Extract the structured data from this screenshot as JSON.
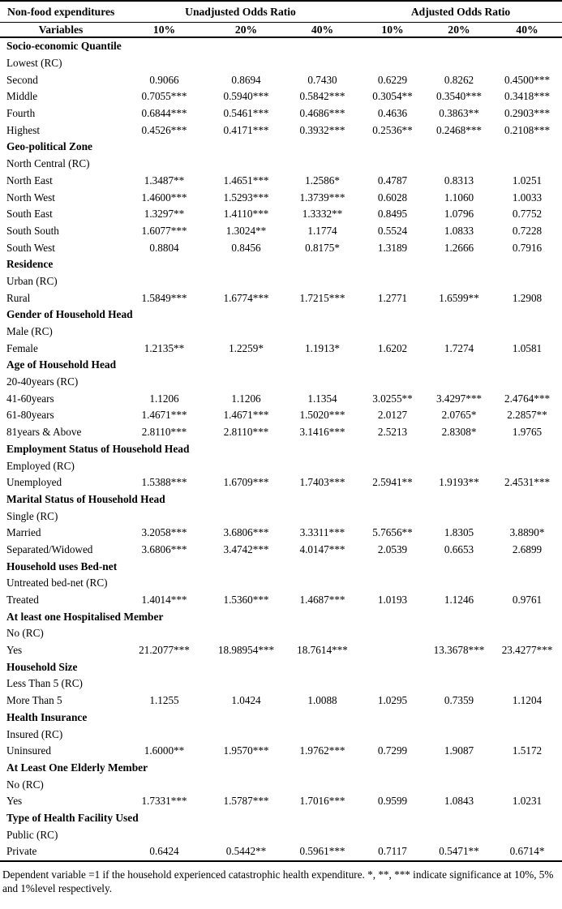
{
  "table": {
    "header": {
      "col1": "Non-food expenditures",
      "group_unadjusted": "Unadjusted Odds Ratio",
      "group_adjusted": "Adjusted Odds Ratio",
      "variables_label": "Variables",
      "thresholds": [
        "10%",
        "20%",
        "40%",
        "10%",
        "20%",
        "40%"
      ]
    },
    "sections": [
      {
        "title": "Socio-economic Quantile",
        "reference": "Lowest (RC)",
        "rows": [
          {
            "label": "Second",
            "values": [
              "0.9066",
              "0.8694",
              "0.7430",
              "0.6229",
              "0.8262",
              "0.4500***"
            ]
          },
          {
            "label": "Middle",
            "values": [
              "0.7055***",
              "0.5940***",
              "0.5842***",
              "0.3054**",
              "0.3540***",
              "0.3418***"
            ]
          },
          {
            "label": "Fourth",
            "values": [
              "0.6844***",
              "0.5461***",
              "0.4686***",
              "0.4636",
              "0.3863**",
              "0.2903***"
            ]
          },
          {
            "label": "Highest",
            "values": [
              "0.4526***",
              "0.4171***",
              "0.3932***",
              "0.2536**",
              "0.2468***",
              "0.2108***"
            ]
          }
        ]
      },
      {
        "title": "Geo-political Zone",
        "reference": "North Central (RC)",
        "rows": [
          {
            "label": "North East",
            "values": [
              "1.3487**",
              "1.4651***",
              "1.2586*",
              "0.4787",
              "0.8313",
              "1.0251"
            ]
          },
          {
            "label": "North West",
            "values": [
              "1.4600***",
              "1.5293***",
              "1.3739***",
              "0.6028",
              "1.1060",
              "1.0033"
            ]
          },
          {
            "label": "South East",
            "values": [
              "1.3297**",
              "1.4110***",
              "1.3332**",
              "0.8495",
              "1.0796",
              "0.7752"
            ]
          },
          {
            "label": "South South",
            "values": [
              "1.6077***",
              "1.3024**",
              "1.1774",
              "0.5524",
              "1.0833",
              "0.7228"
            ]
          },
          {
            "label": "South West",
            "values": [
              "0.8804",
              "0.8456",
              "0.8175*",
              "1.3189",
              "1.2666",
              "0.7916"
            ]
          }
        ]
      },
      {
        "title": "Residence",
        "reference": "Urban (RC)",
        "rows": [
          {
            "label": "Rural",
            "values": [
              "1.5849***",
              "1.6774***",
              "1.7215***",
              "1.2771",
              "1.6599**",
              "1.2908"
            ]
          }
        ]
      },
      {
        "title": "Gender of Household Head",
        "reference": "Male (RC)",
        "rows": [
          {
            "label": "Female",
            "values": [
              "1.2135**",
              "1.2259*",
              "1.1913*",
              "1.6202",
              "1.7274",
              "1.0581"
            ]
          }
        ]
      },
      {
        "title": "Age of Household Head",
        "reference": "20-40years (RC)",
        "rows": [
          {
            "label": "41-60years",
            "values": [
              "1.1206",
              "1.1206",
              "1.1354",
              "3.0255**",
              "3.4297***",
              "2.4764***"
            ]
          },
          {
            "label": "61-80years",
            "values": [
              "1.4671***",
              "1.4671***",
              "1.5020***",
              "2.0127",
              "2.0765*",
              "2.2857**"
            ]
          },
          {
            "label": "81years & Above",
            "values": [
              "2.8110***",
              "2.8110***",
              "3.1416***",
              "2.5213",
              "2.8308*",
              "1.9765"
            ]
          }
        ]
      },
      {
        "title": "Employment Status of Household Head",
        "reference": "Employed (RC)",
        "rows": [
          {
            "label": "Unemployed",
            "values": [
              "1.5388***",
              "1.6709***",
              "1.7403***",
              "2.5941**",
              "1.9193**",
              "2.4531***"
            ]
          }
        ]
      },
      {
        "title": "Marital Status of Household Head",
        "reference": "Single (RC)",
        "rows": [
          {
            "label": "Married",
            "values": [
              "3.2058***",
              "3.6806***",
              "3.3311***",
              "5.7656**",
              "1.8305",
              "3.8890*"
            ]
          },
          {
            "label": "Separated/Widowed",
            "values": [
              "3.6806***",
              "3.4742***",
              "4.0147***",
              "2.0539",
              "0.6653",
              "2.6899"
            ]
          }
        ]
      },
      {
        "title": "Household uses Bed-net",
        "reference": "Untreated bed-net (RC)",
        "rows": [
          {
            "label": "Treated",
            "values": [
              "1.4014***",
              "1.5360***",
              "1.4687***",
              "1.0193",
              "1.1246",
              "0.9761"
            ]
          }
        ]
      },
      {
        "title": "At least one Hospitalised Member",
        "reference": "No (RC)",
        "rows": [
          {
            "label": "Yes",
            "values": [
              "21.2077***",
              "18.98954***",
              "18.7614***",
              "",
              "13.3678***",
              "23.4277***"
            ]
          }
        ]
      },
      {
        "title": "Household Size",
        "reference": "Less Than 5 (RC)",
        "rows": [
          {
            "label": "More Than 5",
            "values": [
              "1.1255",
              "1.0424",
              "1.0088",
              "1.0295",
              "0.7359",
              "1.1204"
            ]
          }
        ]
      },
      {
        "title": "Health Insurance",
        "reference": "Insured (RC)",
        "rows": [
          {
            "label": "Uninsured",
            "values": [
              "1.6000**",
              "1.9570***",
              "1.9762***",
              "0.7299",
              "1.9087",
              "1.5172"
            ]
          }
        ]
      },
      {
        "title": "At Least One Elderly Member",
        "reference": "No (RC)",
        "rows": [
          {
            "label": "Yes",
            "values": [
              "1.7331***",
              "1.5787***",
              "1.7016***",
              "0.9599",
              "1.0843",
              "1.0231"
            ]
          }
        ]
      },
      {
        "title": "Type of Health Facility Used",
        "reference": "Public (RC)",
        "rows": [
          {
            "label": "Private",
            "values": [
              "0.6424",
              "0.5442**",
              "0.5961***",
              "0.7117",
              "0.5471**",
              "0.6714*"
            ]
          }
        ]
      }
    ],
    "footnote": "Dependent variable =1 if the household experienced catastrophic health expenditure. *, **, *** indicate significance at 10%, 5% and 1%level respectively."
  }
}
